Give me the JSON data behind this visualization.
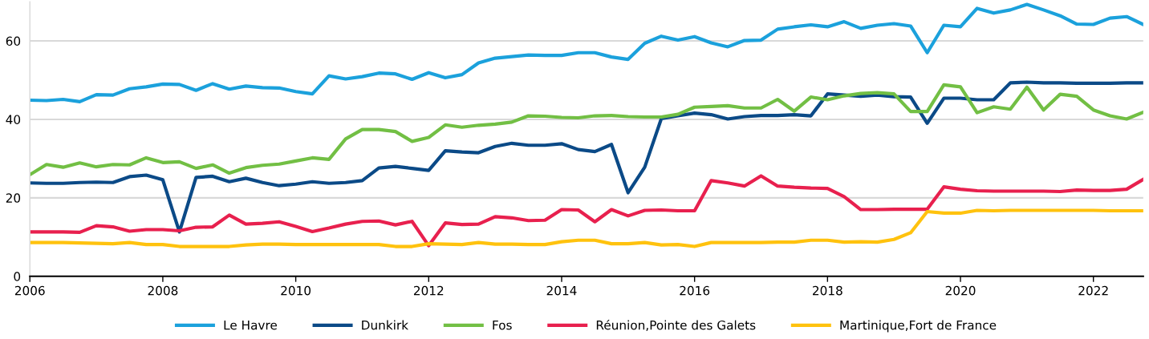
{
  "chart_data": {
    "type": "line",
    "x": [
      2006,
      2006.25,
      2006.5,
      2006.75,
      2007,
      2007.25,
      2007.5,
      2007.75,
      2008,
      2008.25,
      2008.5,
      2008.75,
      2009,
      2009.25,
      2009.5,
      2009.75,
      2010,
      2010.25,
      2010.5,
      2010.75,
      2011,
      2011.25,
      2011.5,
      2011.75,
      2012,
      2012.25,
      2012.5,
      2012.75,
      2013,
      2013.25,
      2013.5,
      2013.75,
      2014,
      2014.25,
      2014.5,
      2014.75,
      2015,
      2015.25,
      2015.5,
      2015.75,
      2016,
      2016.25,
      2016.5,
      2016.75,
      2017,
      2017.25,
      2017.5,
      2017.75,
      2018,
      2018.25,
      2018.5,
      2018.75,
      2019,
      2019.25,
      2019.5,
      2019.75,
      2020,
      2020.25,
      2020.5,
      2020.75,
      2021,
      2021.25,
      2021.5,
      2021.75,
      2022,
      2022.25,
      2022.5,
      2022.75
    ],
    "series": [
      {
        "name": "Le Havre",
        "color": "#1ba1dc",
        "values": [
          44.9,
          44.8,
          45.1,
          44.5,
          46.3,
          46.2,
          47.8,
          48.3,
          49.0,
          48.9,
          47.4,
          49.1,
          47.7,
          48.5,
          48.1,
          48.0,
          47.1,
          46.5,
          51.1,
          50.3,
          50.9,
          51.8,
          51.6,
          50.2,
          51.9,
          50.6,
          51.4,
          54.4,
          55.6,
          56.0,
          56.4,
          56.3,
          56.3,
          57.0,
          57.0,
          55.9,
          55.3,
          59.4,
          61.2,
          60.2,
          61.1,
          59.5,
          58.5,
          60.1,
          60.2,
          63.0,
          63.6,
          64.1,
          63.6,
          64.9,
          63.2,
          64.0,
          64.4,
          63.8,
          57.0,
          64.0,
          63.6,
          68.3,
          67.1,
          67.9,
          69.3,
          67.9,
          66.4,
          64.3,
          64.2,
          65.8,
          66.2,
          64.2
        ]
      },
      {
        "name": "Dunkirk",
        "color": "#0b4a87",
        "values": [
          23.8,
          23.7,
          23.7,
          23.9,
          24.0,
          23.9,
          25.4,
          25.8,
          24.6,
          11.3,
          25.2,
          25.5,
          24.1,
          25.0,
          23.9,
          23.1,
          23.5,
          24.1,
          23.7,
          23.9,
          24.4,
          27.6,
          28.0,
          27.5,
          27.0,
          32.0,
          31.7,
          31.5,
          33.1,
          33.9,
          33.4,
          33.4,
          33.8,
          32.3,
          31.8,
          33.6,
          21.3,
          27.8,
          40.2,
          40.9,
          41.6,
          41.2,
          40.1,
          40.7,
          41.0,
          41.0,
          41.2,
          40.9,
          46.5,
          46.2,
          45.9,
          46.2,
          45.8,
          45.7,
          39.0,
          45.4,
          45.4,
          45.0,
          45.0,
          49.3,
          49.5,
          49.3,
          49.3,
          49.2,
          49.2,
          49.2,
          49.3,
          49.3
        ]
      },
      {
        "name": "Fos",
        "color": "#72bf44",
        "values": [
          25.9,
          28.5,
          27.8,
          28.9,
          27.9,
          28.5,
          28.4,
          30.2,
          29.0,
          29.2,
          27.5,
          28.4,
          26.3,
          27.7,
          28.3,
          28.6,
          29.4,
          30.2,
          29.8,
          35.0,
          37.4,
          37.4,
          36.9,
          34.4,
          35.4,
          38.6,
          38.0,
          38.5,
          38.8,
          39.3,
          40.9,
          40.8,
          40.5,
          40.4,
          40.9,
          41.0,
          40.7,
          40.6,
          40.6,
          41.3,
          43.1,
          43.3,
          43.5,
          42.9,
          42.9,
          45.1,
          42.1,
          45.7,
          45.0,
          46.0,
          46.6,
          46.8,
          46.5,
          42.0,
          42.0,
          48.8,
          48.3,
          41.7,
          43.2,
          42.6,
          48.2,
          42.4,
          46.4,
          45.9,
          42.4,
          40.9,
          40.1,
          41.8
        ]
      },
      {
        "name": "Réunion,Pointe des Galets",
        "color": "#e8204e",
        "values": [
          11.3,
          11.3,
          11.3,
          11.2,
          12.9,
          12.6,
          11.5,
          11.9,
          11.9,
          11.6,
          12.5,
          12.6,
          15.6,
          13.3,
          13.5,
          13.9,
          12.7,
          11.4,
          12.3,
          13.3,
          14.0,
          14.1,
          13.1,
          14.0,
          7.8,
          13.6,
          13.2,
          13.3,
          15.2,
          14.9,
          14.2,
          14.3,
          17.0,
          16.9,
          13.9,
          17.0,
          15.4,
          16.8,
          16.9,
          16.7,
          16.7,
          24.4,
          23.8,
          23.0,
          25.6,
          23.0,
          22.7,
          22.5,
          22.4,
          20.3,
          17.0,
          17.0,
          17.1,
          17.1,
          17.1,
          22.8,
          22.2,
          21.8,
          21.7,
          21.7,
          21.7,
          21.7,
          21.6,
          22.0,
          21.9,
          21.9,
          22.2,
          24.7
        ]
      },
      {
        "name": "Martinique,Fort de France",
        "color": "#ffc20e",
        "values": [
          8.6,
          8.6,
          8.6,
          8.5,
          8.4,
          8.3,
          8.6,
          8.1,
          8.1,
          7.6,
          7.6,
          7.6,
          7.6,
          8.0,
          8.2,
          8.2,
          8.1,
          8.1,
          8.1,
          8.1,
          8.1,
          8.1,
          7.6,
          7.6,
          8.3,
          8.2,
          8.1,
          8.6,
          8.2,
          8.2,
          8.1,
          8.1,
          8.8,
          9.2,
          9.2,
          8.3,
          8.3,
          8.6,
          8.0,
          8.1,
          7.6,
          8.6,
          8.6,
          8.6,
          8.6,
          8.7,
          8.7,
          9.2,
          9.2,
          8.7,
          8.8,
          8.7,
          9.4,
          11.1,
          16.5,
          16.1,
          16.1,
          16.8,
          16.7,
          16.8,
          16.8,
          16.8,
          16.8,
          16.8,
          16.8,
          16.7,
          16.7,
          16.7
        ]
      }
    ],
    "xlim": [
      2006,
      2022.75
    ],
    "xticks": [
      2006,
      2008,
      2010,
      2012,
      2014,
      2016,
      2018,
      2020,
      2022
    ],
    "ylim": [
      0,
      70
    ],
    "yticks": [
      0,
      20,
      40,
      60
    ],
    "grid": "y",
    "legend": "bottom",
    "marker": "none",
    "line_style": "solid"
  }
}
